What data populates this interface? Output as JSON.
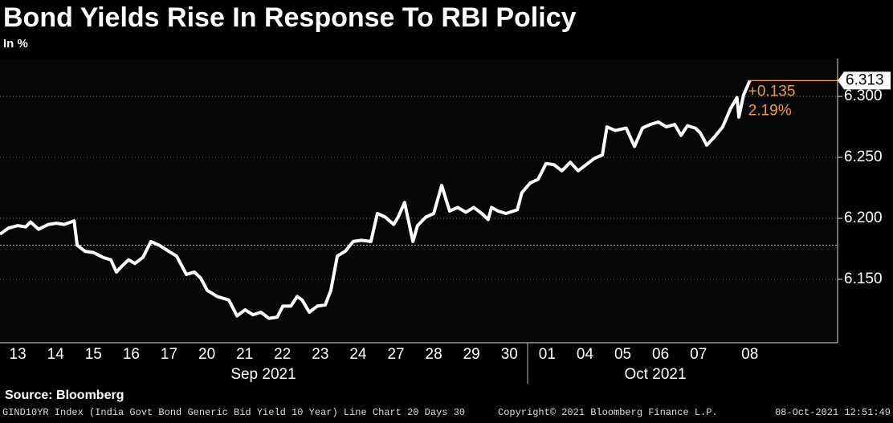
{
  "chart_data": {
    "type": "line",
    "title": "Bond Yields Rise In Response To RBI Policy",
    "subtitle": "In %",
    "source": "Source: Bloomberg",
    "footer_left": "GIND10YR Index (India Govt Bond Generic Bid Yield 10 Year) Line Chart 20 Days 30",
    "footer_center": "Copyright© 2021 Bloomberg Finance L.P.",
    "footer_right": "08-Oct-2021 12:51:49",
    "x_groups": [
      "Sep 2021",
      "Oct 2021"
    ],
    "change": "+0.135",
    "change_pct": "2.19%",
    "reference_line": 6.178,
    "reference_color": "#f39c2d",
    "xlim": [
      -0.47,
      21.68
    ],
    "xticks": [
      {
        "value": 0,
        "label": "13"
      },
      {
        "value": 1,
        "label": "14"
      },
      {
        "value": 2,
        "label": "15"
      },
      {
        "value": 3,
        "label": "16"
      },
      {
        "value": 4,
        "label": "17"
      },
      {
        "value": 5,
        "label": "20"
      },
      {
        "value": 6,
        "label": "21"
      },
      {
        "value": 7,
        "label": "22"
      },
      {
        "value": 8,
        "label": "23"
      },
      {
        "value": 9,
        "label": "24"
      },
      {
        "value": 10,
        "label": "27"
      },
      {
        "value": 11,
        "label": "28"
      },
      {
        "value": 12,
        "label": "29"
      },
      {
        "value": 13,
        "label": "30"
      },
      {
        "value": 14,
        "label": "01"
      },
      {
        "value": 15,
        "label": "04"
      },
      {
        "value": 16,
        "label": "05"
      },
      {
        "value": 17,
        "label": "06"
      },
      {
        "value": 18,
        "label": "07"
      },
      {
        "value": 19.36,
        "label": "08"
      }
    ],
    "ylim": [
      6.098,
      6.331
    ],
    "yticks": [
      {
        "value": 6.15,
        "label": "6.150"
      },
      {
        "value": 6.2,
        "label": "6.200"
      },
      {
        "value": 6.25,
        "label": "6.250"
      },
      {
        "value": 6.3,
        "label": "6.300"
      }
    ],
    "grid": true,
    "x": [
      -0.47,
      -0.25,
      0,
      0.21,
      0.34,
      0.55,
      0.81,
      1.02,
      1.23,
      1.49,
      1.57,
      1.78,
      2.0,
      2.25,
      2.46,
      2.61,
      2.76,
      2.93,
      3.1,
      3.31,
      3.52,
      3.74,
      3.99,
      4.2,
      4.46,
      4.67,
      4.84,
      5.01,
      5.27,
      5.58,
      5.8,
      6.01,
      6.22,
      6.43,
      6.64,
      6.86,
      7.01,
      7.22,
      7.39,
      7.52,
      7.71,
      7.92,
      8.13,
      8.28,
      8.45,
      8.66,
      8.87,
      9.09,
      9.34,
      9.51,
      9.72,
      9.94,
      10.06,
      10.23,
      10.45,
      10.57,
      10.79,
      11.0,
      11.21,
      11.42,
      11.63,
      11.85,
      12.06,
      12.27,
      12.44,
      12.53,
      12.7,
      12.91,
      13.21,
      13.33,
      13.55,
      13.76,
      13.97,
      14.18,
      14.39,
      14.61,
      14.82,
      15.03,
      15.24,
      15.46,
      15.58,
      15.8,
      16.09,
      16.31,
      16.52,
      16.73,
      16.94,
      17.15,
      17.37,
      17.54,
      17.71,
      17.92,
      18.05,
      18.22,
      18.43,
      18.64,
      18.85,
      19.02,
      19.07,
      19.19,
      19.36
    ],
    "series": [
      {
        "color": "#ffffff",
        "values": [
          6.187,
          6.192,
          6.194,
          6.193,
          6.197,
          6.191,
          6.195,
          6.196,
          6.195,
          6.198,
          6.178,
          6.173,
          6.172,
          6.168,
          6.166,
          6.156,
          6.161,
          6.166,
          6.163,
          6.168,
          6.181,
          6.178,
          6.173,
          6.169,
          6.154,
          6.156,
          6.151,
          6.141,
          6.136,
          6.133,
          6.12,
          6.125,
          6.121,
          6.123,
          6.118,
          6.119,
          6.128,
          6.128,
          6.136,
          6.133,
          6.123,
          6.128,
          6.129,
          6.141,
          6.169,
          6.173,
          6.181,
          6.182,
          6.181,
          6.204,
          6.201,
          6.195,
          6.201,
          6.213,
          6.181,
          6.194,
          6.201,
          6.204,
          6.227,
          6.206,
          6.209,
          6.205,
          6.209,
          6.204,
          6.199,
          6.209,
          6.206,
          6.204,
          6.207,
          6.221,
          6.229,
          6.232,
          6.245,
          6.244,
          6.239,
          6.246,
          6.239,
          6.244,
          6.249,
          6.252,
          6.275,
          6.272,
          6.274,
          6.259,
          6.274,
          6.277,
          6.279,
          6.275,
          6.277,
          6.268,
          6.276,
          6.274,
          6.27,
          6.26,
          6.267,
          6.275,
          6.29,
          6.299,
          6.283,
          6.301,
          6.313
        ]
      }
    ]
  }
}
